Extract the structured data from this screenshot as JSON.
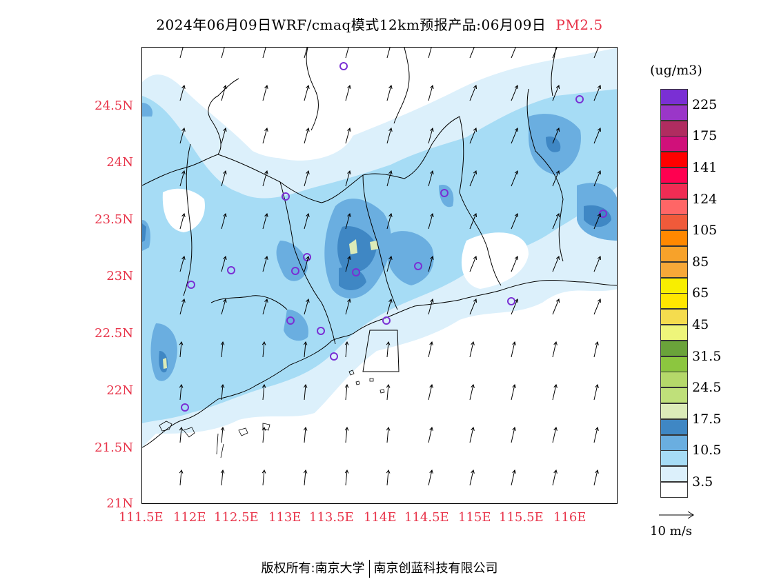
{
  "title": {
    "main": "2024年06月09日WRF/cmaq模式12km预报产品:06月09日",
    "pollutant": "PM2.5"
  },
  "axes": {
    "y_ticks": [
      "24.5N",
      "24N",
      "23.5N",
      "23N",
      "22.5N",
      "22N",
      "21.5N",
      "21N"
    ],
    "x_ticks": [
      "111.5E",
      "112E",
      "112.5E",
      "113E",
      "113.5E",
      "114E",
      "114.5E",
      "115E",
      "115.5E",
      "116E"
    ]
  },
  "legend": {
    "unit": "(ug/m3)",
    "levels": [
      {
        "color": "#ffffff",
        "label": "3.5"
      },
      {
        "color": "#dcf0fb",
        "label": ""
      },
      {
        "color": "#a6dcf5",
        "label": "10.5"
      },
      {
        "color": "#6aaee0",
        "label": ""
      },
      {
        "color": "#3f87c4",
        "label": "17.5"
      },
      {
        "color": "#dcebb8",
        "label": ""
      },
      {
        "color": "#bfe07a",
        "label": "24.5"
      },
      {
        "color": "#b5d86a",
        "label": ""
      },
      {
        "color": "#8cc63f",
        "label": "31.5"
      },
      {
        "color": "#6aa33a",
        "label": ""
      },
      {
        "color": "#eef57a",
        "label": "45"
      },
      {
        "color": "#f5dc4e",
        "label": ""
      },
      {
        "color": "#ffe600",
        "label": "65"
      },
      {
        "color": "#f8ee00",
        "label": ""
      },
      {
        "color": "#f7a838",
        "label": "85"
      },
      {
        "color": "#f7a22a",
        "label": ""
      },
      {
        "color": "#ff8800",
        "label": "105"
      },
      {
        "color": "#f05a3a",
        "label": ""
      },
      {
        "color": "#ff6666",
        "label": "124"
      },
      {
        "color": "#f02c54",
        "label": ""
      },
      {
        "color": "#ff0050",
        "label": "141"
      },
      {
        "color": "#ff0000",
        "label": ""
      },
      {
        "color": "#d0107a",
        "label": "175"
      },
      {
        "color": "#b02c60",
        "label": ""
      },
      {
        "color": "#9a36c8",
        "label": "225"
      },
      {
        "color": "#7a2fd4",
        "label": ""
      }
    ],
    "wind_reference": "10 m/s"
  },
  "footer": {
    "copyright": "版权所有:南京大学",
    "company": "南京创蓝科技有限公司"
  }
}
